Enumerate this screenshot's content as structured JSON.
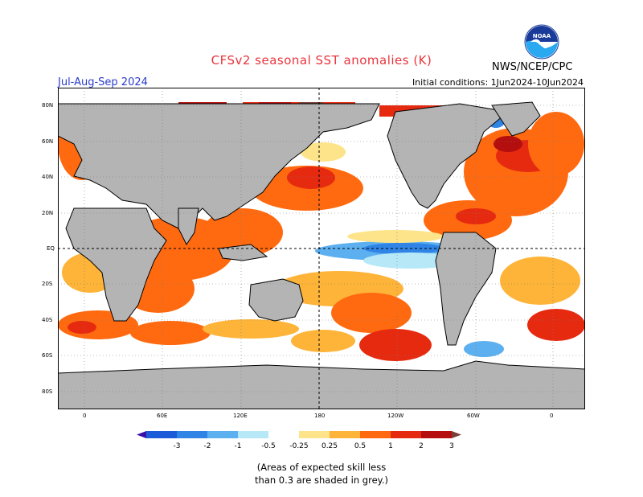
{
  "title": "CFSv2 seasonal SST anomalies (K)",
  "season": "Jul-Aug-Sep 2024",
  "agency": "NWS/NCEP/CPC",
  "initial_conditions": "Initial conditions: 1Jun2024-10Jun2024",
  "logo_text": "NOAA",
  "map": {
    "lat_labels": [
      "80N",
      "60N",
      "40N",
      "20N",
      "EQ",
      "20S",
      "40S",
      "60S",
      "80S"
    ],
    "lon_labels": [
      "0",
      "60E",
      "120E",
      "180",
      "120W",
      "60W",
      "0"
    ],
    "land_color": "#b4b4b4",
    "ocean_color": "#ffffff"
  },
  "colorbar": {
    "labels": [
      "-3",
      "-2",
      "-1",
      "-0.5",
      "-0.25",
      "0.25",
      "0.5",
      "1",
      "2",
      "3"
    ],
    "colors": [
      "#3a10a8",
      "#1c5cd8",
      "#2f84e6",
      "#5cb0f0",
      "#b6e8f8",
      "#ffffff",
      "#fde48a",
      "#fdb438",
      "#ff6a10",
      "#e62a10",
      "#b40e0e",
      "#7a4036"
    ]
  },
  "skill_note": [
    "(Areas of expected skill less",
    "than 0.3 are shaded in grey.)"
  ]
}
